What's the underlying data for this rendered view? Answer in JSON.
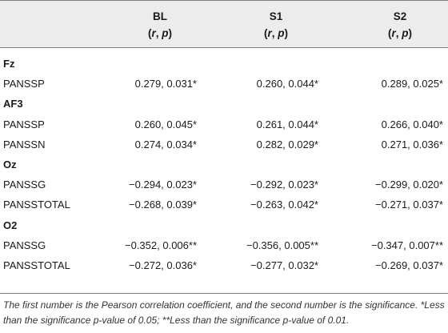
{
  "header": {
    "bl": {
      "title": "BL",
      "sub": "(r, p)"
    },
    "s1": {
      "title": "S1",
      "sub": "(r, p)"
    },
    "s2": {
      "title": "S2",
      "sub": "(r, p)"
    }
  },
  "rows": [
    {
      "type": "group",
      "label": "Fz"
    },
    {
      "type": "data",
      "label": "PANSSP",
      "bl": "0.279, 0.031*",
      "s1": "0.260, 0.044*",
      "s2": "0.289, 0.025*"
    },
    {
      "type": "group",
      "label": "AF3"
    },
    {
      "type": "data",
      "label": "PANSSP",
      "bl": "0.260, 0.045*",
      "s1": "0.261, 0.044*",
      "s2": "0.266, 0.040*"
    },
    {
      "type": "data",
      "label": "PANSSN",
      "bl": "0.274, 0.034*",
      "s1": "0.282, 0.029*",
      "s2": "0.271, 0.036*"
    },
    {
      "type": "group",
      "label": "Oz"
    },
    {
      "type": "data",
      "label": "PANSSG",
      "bl": "−0.294, 0.023*",
      "s1": "−0.292, 0.023*",
      "s2": "−0.299, 0.020*"
    },
    {
      "type": "data",
      "label": "PANSSTOTAL",
      "bl": "−0.268, 0.039*",
      "s1": "−0.263, 0.042*",
      "s2": "−0.271, 0.037*"
    },
    {
      "type": "group",
      "label": "O2"
    },
    {
      "type": "data",
      "label": "PANSSG",
      "bl": "−0.352, 0.006**",
      "s1": "−0.356, 0.005**",
      "s2": "−0.347, 0.007**"
    },
    {
      "type": "data",
      "label": "PANSSTOTAL",
      "bl": "−0.272, 0.036*",
      "s1": "−0.277, 0.032*",
      "s2": "−0.269, 0.037*"
    }
  ],
  "footnote": "The first number is the Pearson correlation coefficient, and the second number is the significance. *Less than the significance p-value of 0.05; **Less than the significance p-value of 0.01."
}
